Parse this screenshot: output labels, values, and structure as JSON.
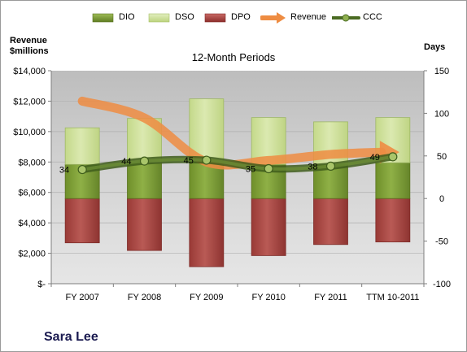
{
  "chart_data": {
    "type": "bar",
    "title": "12-Month Periods",
    "company": "Sara Lee",
    "left_axis": {
      "label_line1": "Revenue",
      "label_line2": "$millions",
      "ylim": [
        0,
        14000
      ],
      "ticks": [
        "$-",
        "$2,000",
        "$4,000",
        "$6,000",
        "$8,000",
        "$10,000",
        "$12,000",
        "$14,000"
      ]
    },
    "right_axis": {
      "label": "Days",
      "ylim": [
        -100,
        150
      ],
      "ticks": [
        "-100",
        "-50",
        "0",
        "50",
        "100",
        "150"
      ]
    },
    "categories": [
      "FY 2007",
      "FY 2008",
      "FY 2009",
      "FY 2010",
      "FY 2011",
      "TTM 10-2011"
    ],
    "series": [
      {
        "name": "DIO",
        "axis": "days",
        "kind": "stacked-bar",
        "values": [
          40,
          42,
          44,
          40,
          40,
          42
        ]
      },
      {
        "name": "DSO",
        "axis": "days",
        "kind": "stacked-bar",
        "values": [
          43,
          52,
          73,
          55,
          50,
          53
        ]
      },
      {
        "name": "DPO",
        "axis": "days",
        "kind": "negative-bar",
        "values": [
          -52,
          -61,
          -80,
          -67,
          -54,
          -51
        ]
      },
      {
        "name": "Revenue",
        "axis": "revenue",
        "kind": "line",
        "values": [
          12000,
          10900,
          8000,
          8100,
          8500,
          8700
        ]
      },
      {
        "name": "CCC",
        "axis": "days",
        "kind": "line",
        "values": [
          34,
          44,
          45,
          35,
          38,
          49
        ]
      }
    ],
    "ccc_labels": [
      "34",
      "44",
      "45",
      "35",
      "38",
      "49"
    ],
    "legend_position": "top",
    "colors": {
      "DIO": "#7a9a30",
      "DSO": "#c9dc92",
      "DPO": "#a8423e",
      "Revenue": "#ee8c42",
      "CCC": "#4a6b22",
      "plot_bg": "#cfcfcf"
    }
  }
}
